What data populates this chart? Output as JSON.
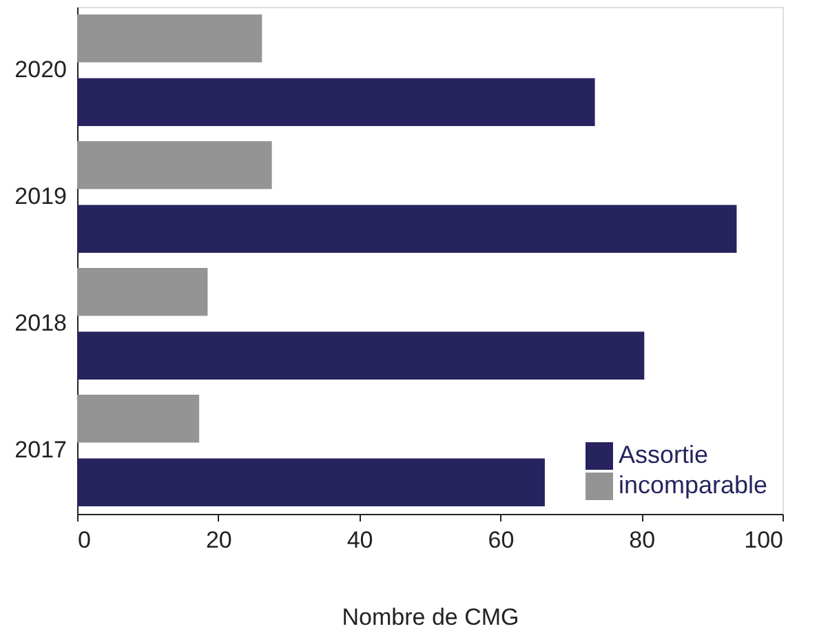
{
  "chart_data": {
    "type": "bar",
    "orientation": "horizontal",
    "xlabel": "Nombre de CMG",
    "categories": [
      "2020",
      "2019",
      "2018",
      "2017"
    ],
    "series": [
      {
        "name": "Assortie",
        "color": "#26235e",
        "values": [
          73.4,
          93.5,
          80.4,
          66.3
        ]
      },
      {
        "name": "incomparable",
        "color": "#949494",
        "values": [
          26.2,
          27.6,
          18.5,
          17.3
        ]
      }
    ],
    "xlim": [
      0,
      100
    ],
    "xticks": [
      0,
      20,
      40,
      60,
      80,
      100
    ],
    "grid": false,
    "legend": "bottom right"
  }
}
